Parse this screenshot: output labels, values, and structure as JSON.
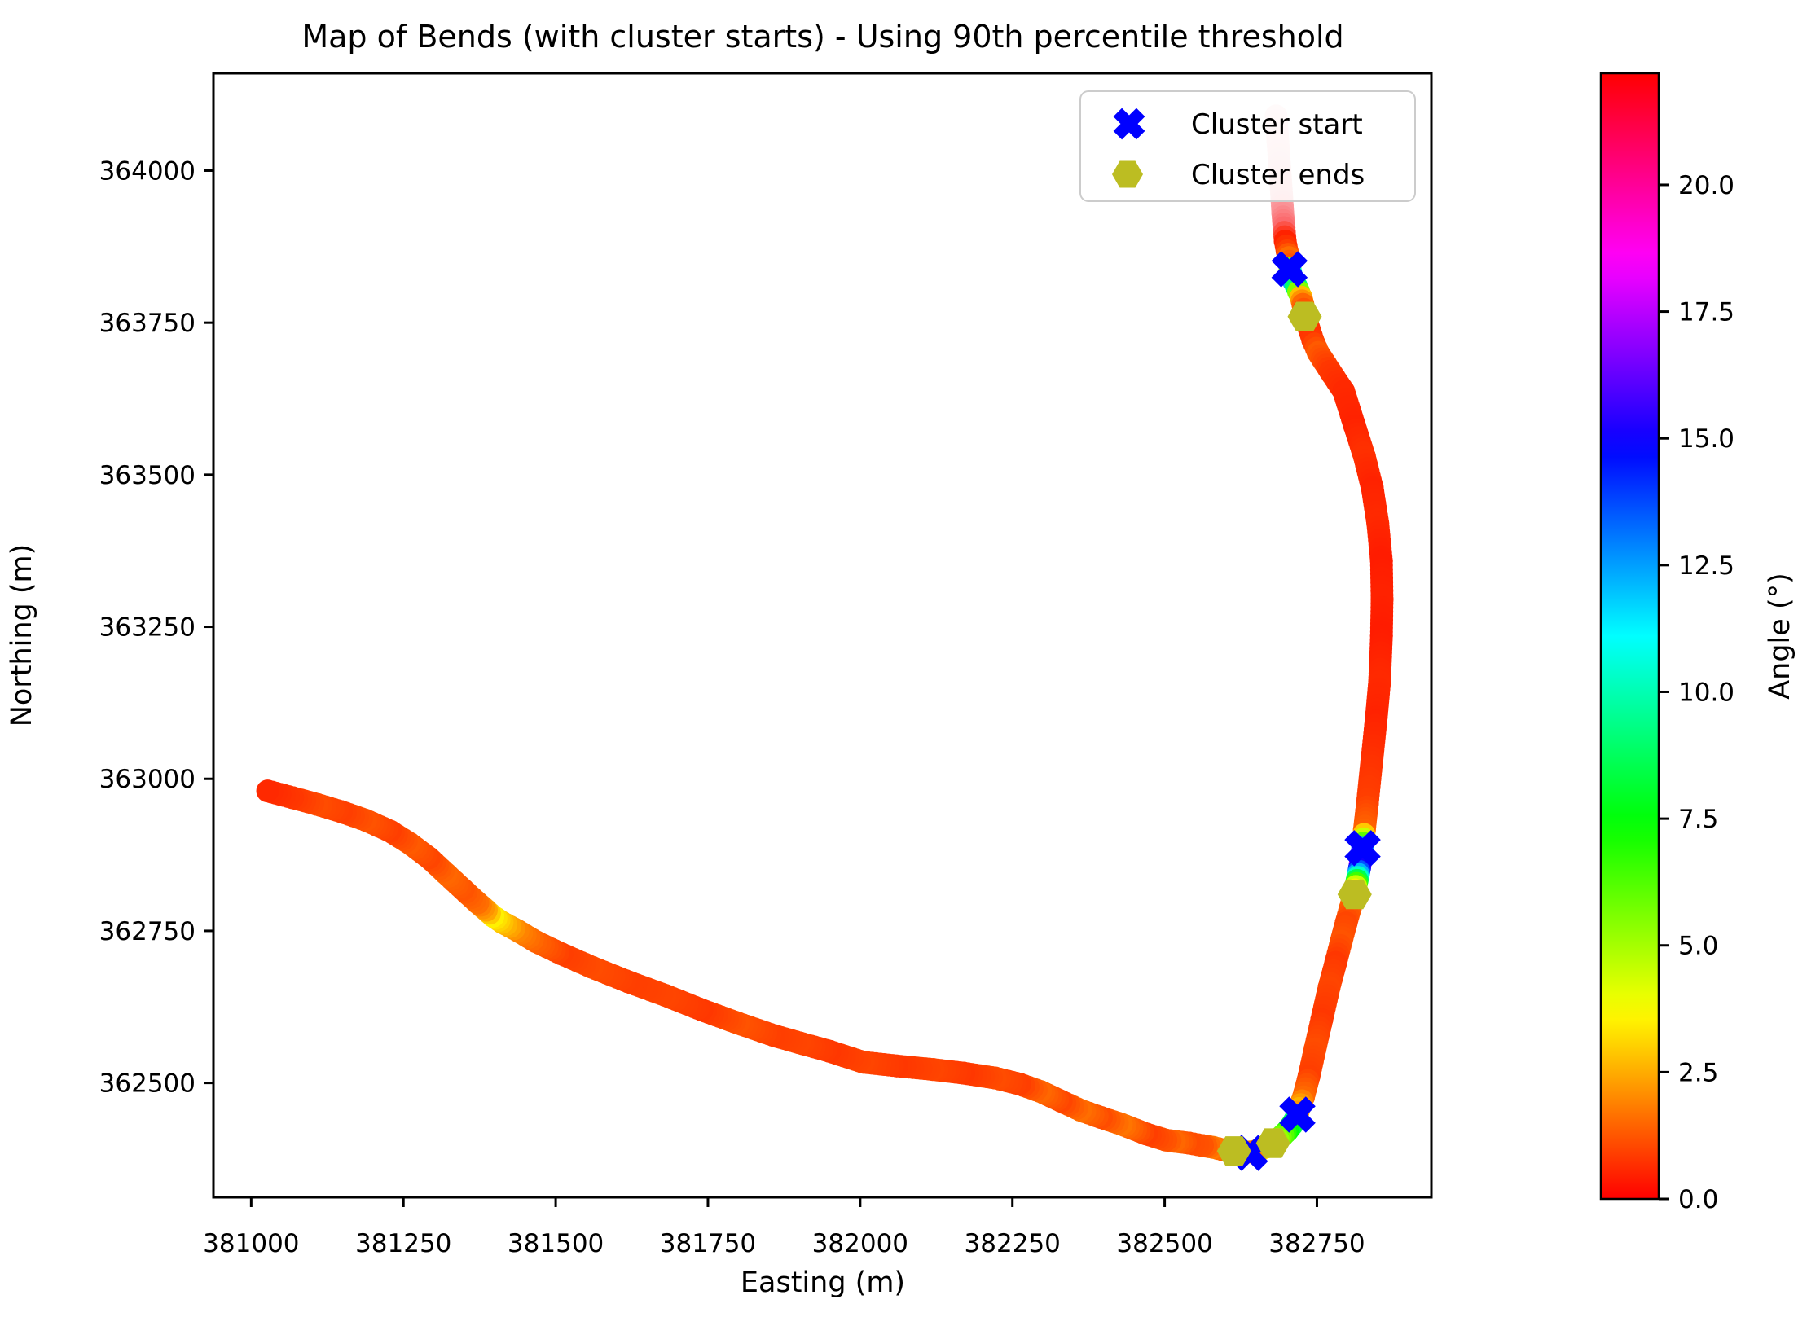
{
  "figure": {
    "background": "#ffffff"
  },
  "chart_data": {
    "type": "scatter",
    "title": "Map of Bends (with cluster starts) - Using 90th percentile threshold",
    "xlabel": "Easting (m)",
    "ylabel": "Northing (m)",
    "xlim": [
      380938,
      382938
    ],
    "ylim": [
      362312,
      364160
    ],
    "xticks": [
      381000,
      381250,
      381500,
      381750,
      382000,
      382250,
      382500,
      382750
    ],
    "yticks": [
      362500,
      362750,
      363000,
      363250,
      363500,
      363750,
      364000
    ],
    "grid": false,
    "legend_position": "upper right inside",
    "colorbar": {
      "label": "Angle (°)",
      "ticks": [
        0,
        2.5,
        5,
        7.5,
        10,
        12.5,
        15,
        17.5,
        20
      ],
      "tick_labels": [
        "0.0",
        "2.5",
        "5.0",
        "7.5",
        "10.0",
        "12.5",
        "15.0",
        "17.5",
        "20.0"
      ],
      "vmin": 0,
      "vmax": 22.2,
      "colormap": "hsv"
    },
    "track_note": "points are [easting, northing, angle_deg]; angle null means faded start segment with explicit color",
    "track": [
      [
        382683,
        364090,
        null,
        "#fbd9da"
      ],
      [
        382686,
        364048,
        null,
        "#facfd1"
      ],
      [
        382689,
        364005,
        null,
        "#f9c0c3"
      ],
      [
        382692,
        363962,
        null,
        "#f9adb1"
      ],
      [
        382694,
        363930,
        null,
        "#fa9296"
      ],
      [
        382696,
        363906,
        null,
        "#fb6b6e"
      ],
      [
        382698,
        363884,
        0.5
      ],
      [
        382701,
        363868,
        0.9
      ],
      [
        382704,
        363857,
        1.6
      ],
      [
        382705,
        363845,
        1.2
      ],
      [
        382708,
        363827,
        14.8
      ],
      [
        382712,
        363818,
        12.2
      ],
      [
        382716,
        363810,
        9.0
      ],
      [
        382720,
        363801,
        5.5
      ],
      [
        382724,
        363792,
        2.8
      ],
      [
        382727,
        363780,
        1.5
      ],
      [
        382730,
        363764,
        0.9
      ],
      [
        382735,
        363747,
        0.7
      ],
      [
        382743,
        363722,
        0.8
      ],
      [
        382752,
        363701,
        1.3
      ],
      [
        382772,
        363670,
        0.8
      ],
      [
        382794,
        363637,
        0.6
      ],
      [
        382812,
        363580,
        0.5
      ],
      [
        382828,
        363530,
        0.7
      ],
      [
        382841,
        363478,
        0.5
      ],
      [
        382850,
        363420,
        0.6
      ],
      [
        382856,
        363358,
        0.4
      ],
      [
        382857,
        363295,
        0.5
      ],
      [
        382856,
        363235,
        0.4
      ],
      [
        382853,
        363160,
        0.6
      ],
      [
        382847,
        363095,
        0.5
      ],
      [
        382840,
        363028,
        0.7
      ],
      [
        382833,
        362960,
        0.9
      ],
      [
        382828,
        362916,
        1.4
      ],
      [
        382826,
        362894,
        6.0
      ],
      [
        382824,
        362878,
        19.0
      ],
      [
        382822,
        362865,
        20.0
      ],
      [
        382820,
        362853,
        15.0
      ],
      [
        382818,
        362843,
        12.2
      ],
      [
        382816,
        362833,
        8.5
      ],
      [
        382814,
        362823,
        4.5
      ],
      [
        382810,
        362806,
        2.0
      ],
      [
        382805,
        362788,
        1.4
      ],
      [
        382798,
        362763,
        1.0
      ],
      [
        382790,
        362733,
        1.2
      ],
      [
        382781,
        362698,
        0.8
      ],
      [
        382770,
        362657,
        1.0
      ],
      [
        382758,
        362604,
        0.8
      ],
      [
        382747,
        362556,
        1.1
      ],
      [
        382737,
        362511,
        0.9
      ],
      [
        382728,
        362477,
        1.5
      ],
      [
        382721,
        362458,
        2.6
      ],
      [
        382719,
        362452,
        2.2
      ],
      [
        382715,
        362441,
        9.5
      ],
      [
        382709,
        362431,
        8.5
      ],
      [
        382702,
        362422,
        7.5
      ],
      [
        382694,
        362414,
        6.2
      ],
      [
        382686,
        362407,
        5.2
      ],
      [
        382676,
        362400,
        4.6
      ],
      [
        382665,
        362394,
        3.8
      ],
      [
        382655,
        362390,
        2.8
      ],
      [
        382645,
        362387,
        2.0
      ],
      [
        382634,
        362386,
        1.6
      ],
      [
        382622,
        362387,
        1.4
      ],
      [
        382610,
        362388,
        1.7
      ],
      [
        382596,
        362390,
        1.4
      ],
      [
        382580,
        362394,
        1.8
      ],
      [
        382562,
        362397,
        1.2
      ],
      [
        382540,
        362401,
        1.1
      ],
      [
        382516,
        362404,
        1.5
      ],
      [
        382502,
        362406,
        1.2
      ],
      [
        382470,
        362416,
        0.9
      ],
      [
        382429,
        362432,
        1.7
      ],
      [
        382396,
        362443,
        1.1
      ],
      [
        382362,
        362455,
        1.6
      ],
      [
        382330,
        362470,
        1.0
      ],
      [
        382296,
        362486,
        1.5
      ],
      [
        382262,
        362498,
        0.9
      ],
      [
        382222,
        362508,
        1.1
      ],
      [
        382170,
        362516,
        0.8
      ],
      [
        382120,
        362522,
        1.0
      ],
      [
        382060,
        362528,
        0.8
      ],
      [
        382005,
        362534,
        1.0
      ],
      [
        381950,
        362552,
        0.8
      ],
      [
        381900,
        362566,
        1.0
      ],
      [
        381858,
        362578,
        0.9
      ],
      [
        381800,
        362598,
        1.2
      ],
      [
        381740,
        362620,
        0.8
      ],
      [
        381680,
        362644,
        1.0
      ],
      [
        381620,
        362666,
        0.9
      ],
      [
        381560,
        362690,
        1.1
      ],
      [
        381510,
        362712,
        0.9
      ],
      [
        381468,
        362732,
        1.4
      ],
      [
        381438,
        362750,
        1.9
      ],
      [
        381412,
        362764,
        2.8
      ],
      [
        381397,
        362774,
        3.5
      ],
      [
        381386,
        362784,
        2.4
      ],
      [
        381372,
        362796,
        1.6
      ],
      [
        381348,
        362818,
        1.2
      ],
      [
        381320,
        362844,
        1.5
      ],
      [
        381292,
        362870,
        1.0
      ],
      [
        381260,
        362894,
        1.3
      ],
      [
        381228,
        362914,
        0.9
      ],
      [
        381188,
        362932,
        1.2
      ],
      [
        381148,
        362946,
        0.9
      ],
      [
        381108,
        362958,
        1.1
      ],
      [
        381068,
        362969,
        0.8
      ],
      [
        381027,
        362980,
        0.6
      ]
    ],
    "cluster_starts": [
      [
        382705,
        363838
      ],
      [
        382825,
        362886
      ],
      [
        382718,
        362448
      ],
      [
        382640,
        362385
      ]
    ],
    "cluster_ends": [
      [
        382730,
        363760
      ],
      [
        382812,
        362810
      ],
      [
        382678,
        362401
      ],
      [
        382614,
        362388
      ]
    ]
  },
  "legend": {
    "items": [
      {
        "label": "Cluster start",
        "marker": "x-icon",
        "color": "#0000ff"
      },
      {
        "label": "Cluster ends",
        "marker": "hexagon-icon",
        "color": "#bcbd22"
      }
    ]
  }
}
